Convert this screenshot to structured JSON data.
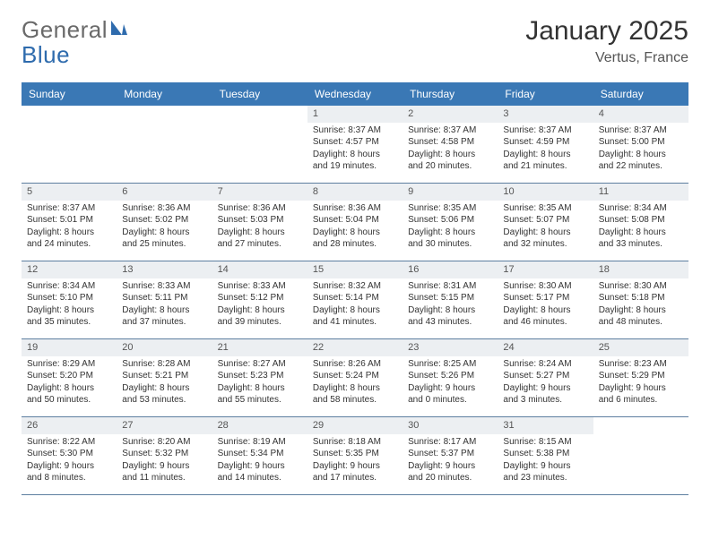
{
  "logo": {
    "text1": "General",
    "text2": "Blue"
  },
  "title": "January 2025",
  "location": "Vertus, France",
  "colors": {
    "header_bg": "#3a78b5",
    "header_text": "#ffffff",
    "daynum_bg": "#eceff2",
    "border": "#5d7ea0",
    "logo_gray": "#6a6a6a",
    "logo_blue": "#2e6bad"
  },
  "dow": [
    "Sunday",
    "Monday",
    "Tuesday",
    "Wednesday",
    "Thursday",
    "Friday",
    "Saturday"
  ],
  "labels": {
    "sunrise": "Sunrise:",
    "sunset": "Sunset:",
    "daylight": "Daylight:"
  },
  "weeks": [
    [
      {
        "n": "",
        "empty": true
      },
      {
        "n": "",
        "empty": true
      },
      {
        "n": "",
        "empty": true
      },
      {
        "n": "1",
        "sr": "8:37 AM",
        "ss": "4:57 PM",
        "dl": "8 hours and 19 minutes."
      },
      {
        "n": "2",
        "sr": "8:37 AM",
        "ss": "4:58 PM",
        "dl": "8 hours and 20 minutes."
      },
      {
        "n": "3",
        "sr": "8:37 AM",
        "ss": "4:59 PM",
        "dl": "8 hours and 21 minutes."
      },
      {
        "n": "4",
        "sr": "8:37 AM",
        "ss": "5:00 PM",
        "dl": "8 hours and 22 minutes."
      }
    ],
    [
      {
        "n": "5",
        "sr": "8:37 AM",
        "ss": "5:01 PM",
        "dl": "8 hours and 24 minutes."
      },
      {
        "n": "6",
        "sr": "8:36 AM",
        "ss": "5:02 PM",
        "dl": "8 hours and 25 minutes."
      },
      {
        "n": "7",
        "sr": "8:36 AM",
        "ss": "5:03 PM",
        "dl": "8 hours and 27 minutes."
      },
      {
        "n": "8",
        "sr": "8:36 AM",
        "ss": "5:04 PM",
        "dl": "8 hours and 28 minutes."
      },
      {
        "n": "9",
        "sr": "8:35 AM",
        "ss": "5:06 PM",
        "dl": "8 hours and 30 minutes."
      },
      {
        "n": "10",
        "sr": "8:35 AM",
        "ss": "5:07 PM",
        "dl": "8 hours and 32 minutes."
      },
      {
        "n": "11",
        "sr": "8:34 AM",
        "ss": "5:08 PM",
        "dl": "8 hours and 33 minutes."
      }
    ],
    [
      {
        "n": "12",
        "sr": "8:34 AM",
        "ss": "5:10 PM",
        "dl": "8 hours and 35 minutes."
      },
      {
        "n": "13",
        "sr": "8:33 AM",
        "ss": "5:11 PM",
        "dl": "8 hours and 37 minutes."
      },
      {
        "n": "14",
        "sr": "8:33 AM",
        "ss": "5:12 PM",
        "dl": "8 hours and 39 minutes."
      },
      {
        "n": "15",
        "sr": "8:32 AM",
        "ss": "5:14 PM",
        "dl": "8 hours and 41 minutes."
      },
      {
        "n": "16",
        "sr": "8:31 AM",
        "ss": "5:15 PM",
        "dl": "8 hours and 43 minutes."
      },
      {
        "n": "17",
        "sr": "8:30 AM",
        "ss": "5:17 PM",
        "dl": "8 hours and 46 minutes."
      },
      {
        "n": "18",
        "sr": "8:30 AM",
        "ss": "5:18 PM",
        "dl": "8 hours and 48 minutes."
      }
    ],
    [
      {
        "n": "19",
        "sr": "8:29 AM",
        "ss": "5:20 PM",
        "dl": "8 hours and 50 minutes."
      },
      {
        "n": "20",
        "sr": "8:28 AM",
        "ss": "5:21 PM",
        "dl": "8 hours and 53 minutes."
      },
      {
        "n": "21",
        "sr": "8:27 AM",
        "ss": "5:23 PM",
        "dl": "8 hours and 55 minutes."
      },
      {
        "n": "22",
        "sr": "8:26 AM",
        "ss": "5:24 PM",
        "dl": "8 hours and 58 minutes."
      },
      {
        "n": "23",
        "sr": "8:25 AM",
        "ss": "5:26 PM",
        "dl": "9 hours and 0 minutes."
      },
      {
        "n": "24",
        "sr": "8:24 AM",
        "ss": "5:27 PM",
        "dl": "9 hours and 3 minutes."
      },
      {
        "n": "25",
        "sr": "8:23 AM",
        "ss": "5:29 PM",
        "dl": "9 hours and 6 minutes."
      }
    ],
    [
      {
        "n": "26",
        "sr": "8:22 AM",
        "ss": "5:30 PM",
        "dl": "9 hours and 8 minutes."
      },
      {
        "n": "27",
        "sr": "8:20 AM",
        "ss": "5:32 PM",
        "dl": "9 hours and 11 minutes."
      },
      {
        "n": "28",
        "sr": "8:19 AM",
        "ss": "5:34 PM",
        "dl": "9 hours and 14 minutes."
      },
      {
        "n": "29",
        "sr": "8:18 AM",
        "ss": "5:35 PM",
        "dl": "9 hours and 17 minutes."
      },
      {
        "n": "30",
        "sr": "8:17 AM",
        "ss": "5:37 PM",
        "dl": "9 hours and 20 minutes."
      },
      {
        "n": "31",
        "sr": "8:15 AM",
        "ss": "5:38 PM",
        "dl": "9 hours and 23 minutes."
      },
      {
        "n": "",
        "empty": true
      }
    ]
  ]
}
